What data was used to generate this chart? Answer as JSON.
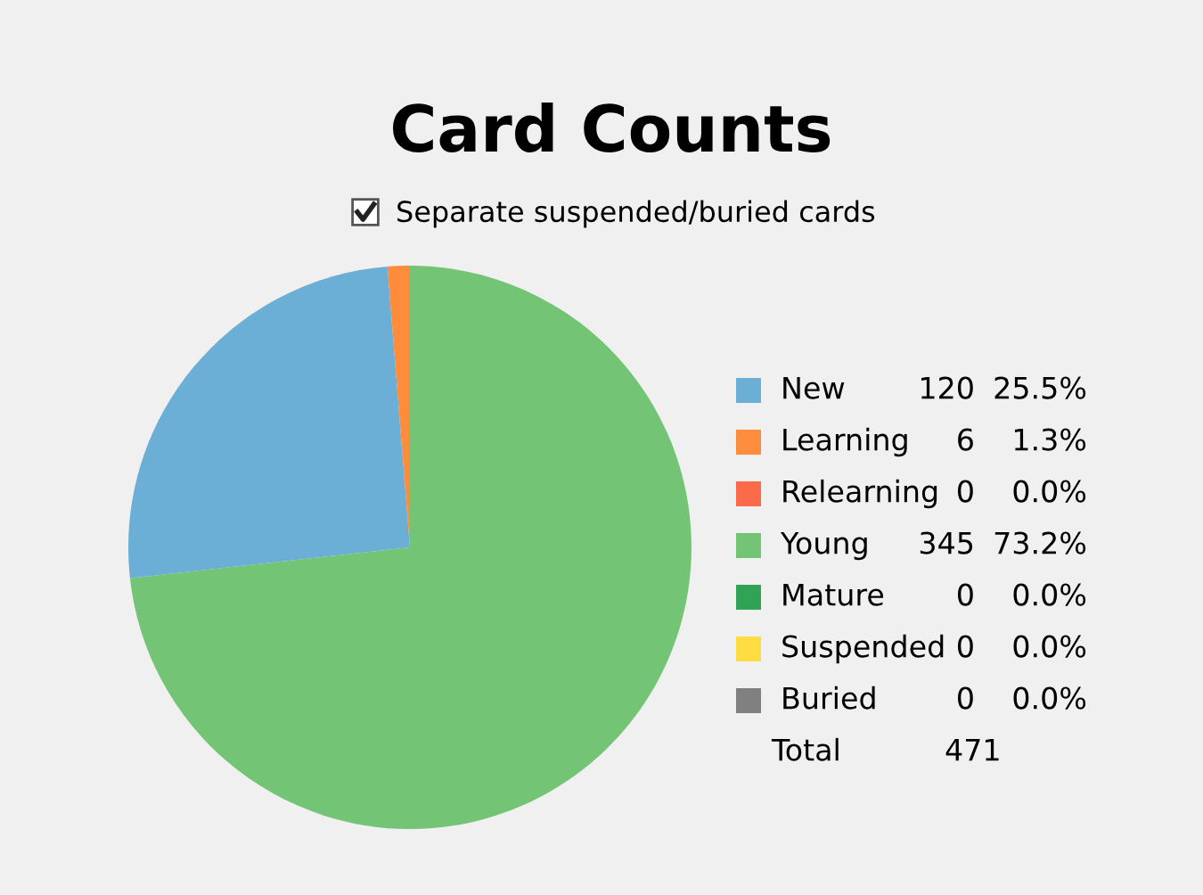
{
  "chart_data": {
    "type": "pie",
    "title": "Card Counts",
    "categories": [
      "New",
      "Learning",
      "Relearning",
      "Young",
      "Mature",
      "Suspended",
      "Buried"
    ],
    "values": [
      120,
      6,
      0,
      345,
      0,
      0,
      0
    ],
    "colors": [
      "#6baed6",
      "#fd8d3c",
      "#fb6a4a",
      "#74c476",
      "#31a354",
      "#ffdc41",
      "#808080"
    ],
    "value_labels": [
      "120",
      "6",
      "0",
      "345",
      "0",
      "0",
      "0"
    ],
    "totals": [
      "471"
    ],
    "annotations": [
      "Separate suspended/buried cards",
      "25.5%",
      "1.3%",
      "0.0%",
      "73.2%",
      "0.0%",
      "0.0%",
      "0.0%",
      "Total"
    ],
    "legend": "right"
  }
}
